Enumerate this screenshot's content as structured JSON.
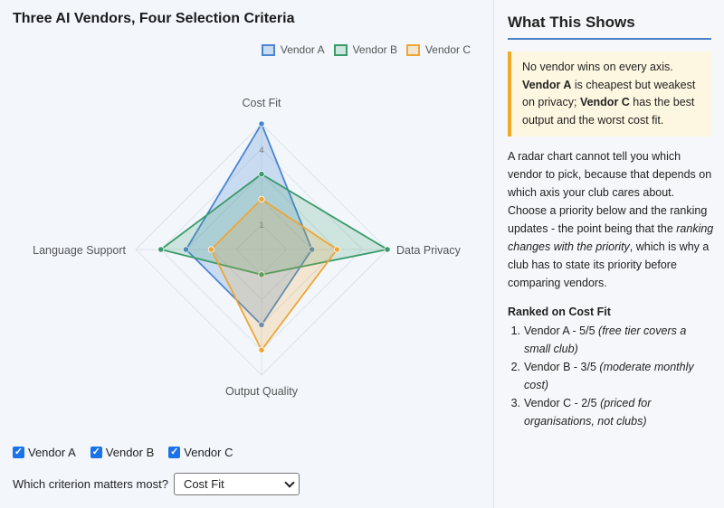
{
  "chart_title": "Three AI Vendors, Four Selection Criteria",
  "chart_data": {
    "type": "radar",
    "axes": [
      "Cost Fit",
      "Data Privacy",
      "Output Quality",
      "Language Support"
    ],
    "rmax": 5,
    "tick_labels": [
      "1",
      "4"
    ],
    "grid": true,
    "legend": "top-right",
    "series": [
      {
        "name": "Vendor A",
        "values": [
          5,
          2,
          3,
          3
        ],
        "color": "#4a86d0",
        "fill": "rgba(74,134,208,0.25)"
      },
      {
        "name": "Vendor B",
        "values": [
          3,
          5,
          1,
          4
        ],
        "color": "#3a9a6a",
        "fill": "rgba(58,154,106,0.20)"
      },
      {
        "name": "Vendor C",
        "values": [
          2,
          3,
          4,
          2
        ],
        "color": "#efa533",
        "fill": "rgba(239,165,51,0.20)"
      }
    ]
  },
  "controls": {
    "toggles": [
      {
        "label": "Vendor A",
        "checked": true
      },
      {
        "label": "Vendor B",
        "checked": true
      },
      {
        "label": "Vendor C",
        "checked": true
      }
    ],
    "priority_label": "Which criterion matters most?",
    "priority_value": "Cost Fit"
  },
  "side": {
    "title": "What This Shows",
    "callout": {
      "p1": "No vendor wins on every axis.",
      "a_name": "Vendor A",
      "p2": "is cheapest but weakest on privacy;",
      "c_name": "Vendor C",
      "p3": "has the best output and the worst cost fit."
    },
    "body": {
      "p1": "A radar chart cannot tell you which vendor to pick, because that depends on which axis your club cares about. Choose a priority below and the ranking updates - the point being that the",
      "em": "ranking changes with the priority",
      "p2": ", which is why a club has to state its priority before comparing vendors."
    },
    "ranked_title": "Ranked on Cost Fit",
    "ranked": [
      {
        "num": "1.",
        "text": "Vendor A - 5/5",
        "note": "(free tier covers a small club)"
      },
      {
        "num": "2.",
        "text": "Vendor B - 3/5",
        "note": "(moderate monthly cost)"
      },
      {
        "num": "3.",
        "text": "Vendor C - 2/5",
        "note": "(priced for organisations, not clubs)"
      }
    ]
  }
}
